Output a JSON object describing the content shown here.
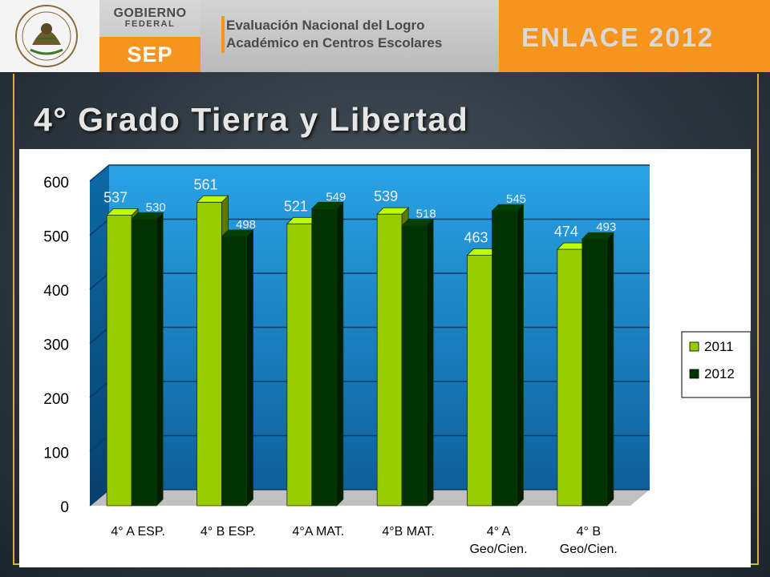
{
  "header": {
    "gobierno_line1": "GOBIERNO",
    "gobierno_line2": "FEDERAL",
    "sep": "SEP",
    "evaluacion_line1": "Evaluación Nacional del Logro",
    "evaluacion_line2": "Académico en Centros Escolares",
    "enlace_word": "ENLACE",
    "enlace_year": "2012"
  },
  "title": "4° Grado Tierra y Libertad",
  "colors": {
    "accent_orange": "#f7941d",
    "frame_gold": "#d4b22c",
    "series_2011": "#99cc00",
    "series_2012": "#003300",
    "plot_blue": "#1e8fd6"
  },
  "chart_data": {
    "type": "bar",
    "categories": [
      "4° A ESP.",
      "4° B ESP.",
      "4°A MAT.",
      "4°B MAT.",
      "4° A Geo/Cien.",
      "4° B Geo/Cien."
    ],
    "category_lines": [
      [
        "4° A ESP."
      ],
      [
        "4° B ESP."
      ],
      [
        "4°A MAT."
      ],
      [
        "4°B MAT."
      ],
      [
        "4° A",
        "Geo/Cien."
      ],
      [
        "4° B",
        "Geo/Cien."
      ]
    ],
    "series": [
      {
        "name": "2011",
        "values": [
          537,
          561,
          521,
          539,
          463,
          474
        ]
      },
      {
        "name": "2012",
        "values": [
          530,
          498,
          549,
          518,
          545,
          493
        ]
      }
    ],
    "ylim": [
      0,
      600
    ],
    "yticks": [
      0,
      100,
      200,
      300,
      400,
      500,
      600
    ],
    "ytick_labels": [
      "0",
      "100",
      "200",
      "300",
      "400",
      "500",
      "600"
    ],
    "grid": true,
    "legend": "right",
    "three_d": true
  }
}
